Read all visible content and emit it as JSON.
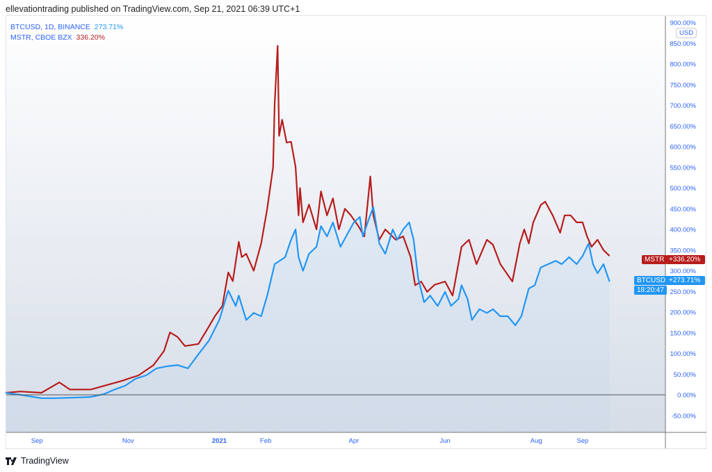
{
  "publisher_line": "ellevationtrading published on TradingView.com, Sep 21, 2021 06:39 UTC+1",
  "legend": [
    {
      "name": "BTCUSD, 1D, BINANCE",
      "value": "273.71%",
      "color": "#2196f3"
    },
    {
      "name": "MSTR, CBOE BZX",
      "value": "336.20%",
      "color": "#b71c1c"
    }
  ],
  "currency_button": "USD",
  "price_tags": {
    "mstr": {
      "label": "MSTR",
      "value": "+336.20%"
    },
    "btc": {
      "label": "BTCUSD",
      "value": "+273.71%",
      "countdown": "18:20:47"
    }
  },
  "brand": "TradingView",
  "chart_data": {
    "type": "line",
    "x_unit": "days since 2020-08-11",
    "ylabel": "% change",
    "ylim": [
      -100,
      910
    ],
    "yticks": [
      -50,
      0,
      50,
      100,
      150,
      200,
      250,
      300,
      350,
      400,
      450,
      500,
      550,
      600,
      650,
      700,
      750,
      800,
      850,
      900
    ],
    "ytick_labels": [
      "-50.00%",
      "0.00%",
      "50.00%",
      "100.00%",
      "150.00%",
      "200.00%",
      "250.00%",
      "300.00%",
      "350.00%",
      "400.00%",
      "450.00%",
      "500.00%",
      "550.00%",
      "600.00%",
      "650.00%",
      "700.00%",
      "750.00%",
      "800.00%",
      "850.00%",
      "900.00%"
    ],
    "xticks": [
      {
        "x": 21,
        "label": "Sep"
      },
      {
        "x": 82,
        "label": "Nov"
      },
      {
        "x": 143,
        "label": "2021",
        "bold": true
      },
      {
        "x": 174,
        "label": "Feb"
      },
      {
        "x": 233,
        "label": "Apr"
      },
      {
        "x": 294,
        "label": "Jun"
      },
      {
        "x": 355,
        "label": "Aug"
      },
      {
        "x": 386,
        "label": "Sep"
      }
    ],
    "xlim": [
      0,
      441
    ],
    "series": [
      {
        "name": "BTCUSD",
        "color": "#2196f3",
        "area": true,
        "points": [
          [
            0,
            5
          ],
          [
            10,
            0
          ],
          [
            24,
            -8
          ],
          [
            33,
            -8
          ],
          [
            43,
            -7
          ],
          [
            57,
            -5
          ],
          [
            66,
            2
          ],
          [
            73,
            13
          ],
          [
            80,
            22
          ],
          [
            87,
            39
          ],
          [
            94,
            47
          ],
          [
            101,
            64
          ],
          [
            108,
            69
          ],
          [
            115,
            72
          ],
          [
            122,
            64
          ],
          [
            129,
            98
          ],
          [
            136,
            131
          ],
          [
            143,
            181
          ],
          [
            149,
            252
          ],
          [
            154,
            215
          ],
          [
            156,
            240
          ],
          [
            161,
            181
          ],
          [
            166,
            198
          ],
          [
            171,
            190
          ],
          [
            175,
            240
          ],
          [
            180,
            316
          ],
          [
            187,
            333
          ],
          [
            191,
            375
          ],
          [
            194,
            400
          ],
          [
            196,
            333
          ],
          [
            199,
            300
          ],
          [
            203,
            341
          ],
          [
            208,
            358
          ],
          [
            211,
            408
          ],
          [
            215,
            383
          ],
          [
            219,
            417
          ],
          [
            224,
            358
          ],
          [
            229,
            391
          ],
          [
            233,
            417
          ],
          [
            237,
            430
          ],
          [
            239,
            383
          ],
          [
            243,
            425
          ],
          [
            246,
            454
          ],
          [
            250,
            366
          ],
          [
            254,
            341
          ],
          [
            259,
            400
          ],
          [
            262,
            375
          ],
          [
            266,
            400
          ],
          [
            270,
            417
          ],
          [
            273,
            375
          ],
          [
            276,
            282
          ],
          [
            280,
            224
          ],
          [
            284,
            240
          ],
          [
            289,
            215
          ],
          [
            294,
            249
          ],
          [
            298,
            215
          ],
          [
            303,
            232
          ],
          [
            305,
            265
          ],
          [
            309,
            232
          ],
          [
            312,
            181
          ],
          [
            317,
            207
          ],
          [
            322,
            198
          ],
          [
            326,
            207
          ],
          [
            331,
            190
          ],
          [
            336,
            190
          ],
          [
            341,
            168
          ],
          [
            345,
            190
          ],
          [
            350,
            257
          ],
          [
            354,
            265
          ],
          [
            358,
            308
          ],
          [
            363,
            316
          ],
          [
            368,
            324
          ],
          [
            372,
            316
          ],
          [
            377,
            333
          ],
          [
            382,
            316
          ],
          [
            386,
            336
          ],
          [
            390,
            366
          ],
          [
            393,
            316
          ],
          [
            396,
            294
          ],
          [
            400,
            316
          ],
          [
            404,
            274
          ]
        ]
      },
      {
        "name": "MSTR",
        "color": "#b71c1c",
        "area": false,
        "points": [
          [
            0,
            5
          ],
          [
            10,
            8
          ],
          [
            24,
            5
          ],
          [
            36,
            30
          ],
          [
            43,
            13
          ],
          [
            57,
            13
          ],
          [
            71,
            27
          ],
          [
            78,
            34
          ],
          [
            82,
            39
          ],
          [
            89,
            47
          ],
          [
            99,
            72
          ],
          [
            106,
            106
          ],
          [
            110,
            151
          ],
          [
            115,
            140
          ],
          [
            120,
            118
          ],
          [
            129,
            123
          ],
          [
            136,
            165
          ],
          [
            140,
            190
          ],
          [
            145,
            215
          ],
          [
            149,
            296
          ],
          [
            152,
            275
          ],
          [
            156,
            370
          ],
          [
            158,
            333
          ],
          [
            161,
            341
          ],
          [
            166,
            300
          ],
          [
            171,
            366
          ],
          [
            175,
            450
          ],
          [
            179,
            551
          ],
          [
            180,
            702
          ],
          [
            182,
            844
          ],
          [
            183,
            626
          ],
          [
            185,
            665
          ],
          [
            188,
            610
          ],
          [
            191,
            612
          ],
          [
            194,
            551
          ],
          [
            196,
            434
          ],
          [
            197,
            500
          ],
          [
            199,
            417
          ],
          [
            203,
            460
          ],
          [
            208,
            400
          ],
          [
            211,
            492
          ],
          [
            215,
            434
          ],
          [
            219,
            475
          ],
          [
            223,
            400
          ],
          [
            227,
            450
          ],
          [
            231,
            434
          ],
          [
            236,
            408
          ],
          [
            240,
            383
          ],
          [
            244,
            528
          ],
          [
            246,
            434
          ],
          [
            250,
            375
          ],
          [
            254,
            400
          ],
          [
            261,
            375
          ],
          [
            266,
            383
          ],
          [
            271,
            333
          ],
          [
            274,
            265
          ],
          [
            278,
            274
          ],
          [
            282,
            249
          ],
          [
            287,
            266
          ],
          [
            294,
            274
          ],
          [
            299,
            240
          ],
          [
            305,
            358
          ],
          [
            310,
            375
          ],
          [
            315,
            316
          ],
          [
            322,
            375
          ],
          [
            326,
            363
          ],
          [
            331,
            316
          ],
          [
            339,
            274
          ],
          [
            344,
            366
          ],
          [
            347,
            400
          ],
          [
            350,
            366
          ],
          [
            353,
            417
          ],
          [
            358,
            459
          ],
          [
            361,
            467
          ],
          [
            366,
            434
          ],
          [
            371,
            392
          ],
          [
            374,
            434
          ],
          [
            378,
            434
          ],
          [
            382,
            417
          ],
          [
            386,
            417
          ],
          [
            389,
            383
          ],
          [
            392,
            358
          ],
          [
            396,
            375
          ],
          [
            400,
            350
          ],
          [
            404,
            336
          ]
        ]
      }
    ]
  }
}
